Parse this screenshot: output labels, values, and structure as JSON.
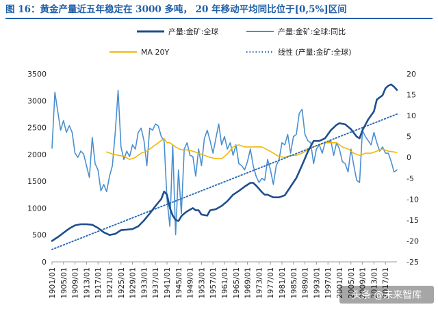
{
  "title": "图 16：黄金产量近五年稳定在 3000 多吨， 20 年移动平均同比位于[0,5%]区间",
  "watermark": "头条 @未来智库",
  "chart_data": {
    "type": "line",
    "legend": [
      {
        "name": "产量:金矿:全球",
        "color": "#1f4e8c",
        "style": "solid-thick",
        "axis": "left"
      },
      {
        "name": "产量:金矿:全球:同比",
        "color": "#4a8fd0",
        "style": "solid",
        "axis": "right"
      },
      {
        "name": "MA 20Y",
        "color": "#f2b705",
        "style": "solid",
        "axis": "right"
      },
      {
        "name": "线性 (产量:金矿:全球)",
        "color": "#2e6db4",
        "style": "dotted",
        "axis": "left"
      }
    ],
    "y_left": {
      "min": 0,
      "max": 3500,
      "step": 500,
      "ticks": [
        "0",
        "500",
        "1000",
        "1500",
        "2000",
        "2500",
        "3000",
        "3500"
      ]
    },
    "y_right": {
      "min": -25,
      "max": 20,
      "step": 5,
      "ticks": [
        "-25",
        "-20",
        "-15",
        "-10",
        "-5",
        "0",
        "5",
        "10",
        "15",
        "20"
      ]
    },
    "x_start_year": 1901,
    "x_end_year": 2021,
    "x_ticks": [
      "1901/01",
      "1905/01",
      "1909/01",
      "1913/01",
      "1917/01",
      "1921/01",
      "1925/01",
      "1929/01",
      "1933/01",
      "1937/01",
      "1941/01",
      "1945/01",
      "1949/01",
      "1953/01",
      "1957/01",
      "1961/01",
      "1965/01",
      "1969/01",
      "1973/01",
      "1977/01",
      "1981/01",
      "1985/01",
      "1989/01",
      "1993/01",
      "1997/01",
      "2001/01",
      "2005/01",
      "2009/01",
      "2013/01",
      "2017/01"
    ],
    "series": [
      {
        "name": "产量:金矿:全球",
        "axis": "left",
        "points": [
          [
            1901,
            390
          ],
          [
            1903,
            460
          ],
          [
            1905,
            540
          ],
          [
            1907,
            620
          ],
          [
            1909,
            680
          ],
          [
            1911,
            700
          ],
          [
            1913,
            700
          ],
          [
            1915,
            690
          ],
          [
            1917,
            630
          ],
          [
            1919,
            550
          ],
          [
            1921,
            500
          ],
          [
            1923,
            520
          ],
          [
            1925,
            590
          ],
          [
            1927,
            600
          ],
          [
            1929,
            610
          ],
          [
            1931,
            660
          ],
          [
            1933,
            770
          ],
          [
            1935,
            900
          ],
          [
            1937,
            1040
          ],
          [
            1939,
            1170
          ],
          [
            1940,
            1310
          ],
          [
            1941,
            1250
          ],
          [
            1942,
            1000
          ],
          [
            1943,
            860
          ],
          [
            1944,
            780
          ],
          [
            1945,
            760
          ],
          [
            1946,
            850
          ],
          [
            1947,
            900
          ],
          [
            1948,
            940
          ],
          [
            1950,
            1000
          ],
          [
            1951,
            960
          ],
          [
            1952,
            960
          ],
          [
            1953,
            880
          ],
          [
            1955,
            860
          ],
          [
            1956,
            960
          ],
          [
            1958,
            980
          ],
          [
            1960,
            1040
          ],
          [
            1962,
            1130
          ],
          [
            1964,
            1250
          ],
          [
            1966,
            1320
          ],
          [
            1968,
            1400
          ],
          [
            1970,
            1470
          ],
          [
            1971,
            1470
          ],
          [
            1972,
            1420
          ],
          [
            1974,
            1300
          ],
          [
            1975,
            1250
          ],
          [
            1976,
            1250
          ],
          [
            1978,
            1200
          ],
          [
            1980,
            1200
          ],
          [
            1982,
            1240
          ],
          [
            1984,
            1400
          ],
          [
            1986,
            1560
          ],
          [
            1988,
            1800
          ],
          [
            1990,
            2050
          ],
          [
            1992,
            2250
          ],
          [
            1994,
            2250
          ],
          [
            1996,
            2300
          ],
          [
            1998,
            2450
          ],
          [
            2000,
            2550
          ],
          [
            2001,
            2580
          ],
          [
            2003,
            2560
          ],
          [
            2005,
            2470
          ],
          [
            2007,
            2330
          ],
          [
            2008,
            2300
          ],
          [
            2009,
            2450
          ],
          [
            2011,
            2650
          ],
          [
            2013,
            2800
          ],
          [
            2014,
            3020
          ],
          [
            2016,
            3100
          ],
          [
            2017,
            3230
          ],
          [
            2018,
            3280
          ],
          [
            2019,
            3300
          ],
          [
            2020,
            3260
          ],
          [
            2021,
            3200
          ]
        ]
      },
      {
        "name": "产量:金矿:全球:同比",
        "axis": "right",
        "points": [
          [
            1901,
            2.2
          ],
          [
            1902,
            15.6
          ],
          [
            1903,
            11.0
          ],
          [
            1904,
            6.5
          ],
          [
            1905,
            8.8
          ],
          [
            1906,
            6.0
          ],
          [
            1907,
            7.6
          ],
          [
            1908,
            6.0
          ],
          [
            1909,
            1.0
          ],
          [
            1910,
            0.0
          ],
          [
            1911,
            1.5
          ],
          [
            1912,
            0.8
          ],
          [
            1913,
            -2.0
          ],
          [
            1914,
            -4.8
          ],
          [
            1915,
            4.8
          ],
          [
            1916,
            -1.5
          ],
          [
            1917,
            -3.0
          ],
          [
            1918,
            -8.0
          ],
          [
            1919,
            -6.5
          ],
          [
            1920,
            -8.2
          ],
          [
            1921,
            -4.5
          ],
          [
            1922,
            -2.0
          ],
          [
            1923,
            6.0
          ],
          [
            1924,
            16.0
          ],
          [
            1925,
            2.5
          ],
          [
            1926,
            -0.5
          ],
          [
            1927,
            1.5
          ],
          [
            1928,
            0.2
          ],
          [
            1929,
            3.0
          ],
          [
            1930,
            2.0
          ],
          [
            1931,
            6.0
          ],
          [
            1932,
            7.0
          ],
          [
            1933,
            4.0
          ],
          [
            1934,
            -2.0
          ],
          [
            1935,
            7.0
          ],
          [
            1936,
            6.5
          ],
          [
            1937,
            8.0
          ],
          [
            1938,
            7.5
          ],
          [
            1939,
            5.0
          ],
          [
            1940,
            4.0
          ],
          [
            1941,
            -10.0
          ],
          [
            1942,
            -16.5
          ],
          [
            1943,
            3.0
          ],
          [
            1944,
            -18.5
          ],
          [
            1945,
            -3.0
          ],
          [
            1946,
            -13.5
          ],
          [
            1947,
            2.0
          ],
          [
            1948,
            3.5
          ],
          [
            1949,
            0.5
          ],
          [
            1950,
            0.2
          ],
          [
            1951,
            -4.5
          ],
          [
            1952,
            2.0
          ],
          [
            1953,
            -2.0
          ],
          [
            1954,
            4.5
          ],
          [
            1955,
            6.5
          ],
          [
            1956,
            4.0
          ],
          [
            1957,
            1.0
          ],
          [
            1958,
            4.5
          ],
          [
            1959,
            8.0
          ],
          [
            1960,
            3.0
          ],
          [
            1961,
            5.0
          ],
          [
            1962,
            2.0
          ],
          [
            1963,
            3.5
          ],
          [
            1964,
            0.5
          ],
          [
            1965,
            3.0
          ],
          [
            1966,
            -1.5
          ],
          [
            1967,
            -2.0
          ],
          [
            1968,
            -3.0
          ],
          [
            1969,
            -1.0
          ],
          [
            1970,
            2.0
          ],
          [
            1971,
            -2.0
          ],
          [
            1972,
            -4.5
          ],
          [
            1973,
            -6.0
          ],
          [
            1974,
            -5.0
          ],
          [
            1975,
            -5.5
          ],
          [
            1976,
            -0.5
          ],
          [
            1977,
            -3.0
          ],
          [
            1978,
            -6.5
          ],
          [
            1979,
            -2.0
          ],
          [
            1980,
            -0.5
          ],
          [
            1981,
            3.5
          ],
          [
            1982,
            3.0
          ],
          [
            1983,
            5.5
          ],
          [
            1984,
            1.0
          ],
          [
            1985,
            5.0
          ],
          [
            1986,
            5.5
          ],
          [
            1987,
            10.5
          ],
          [
            1988,
            11.5
          ],
          [
            1989,
            5.5
          ],
          [
            1990,
            4.0
          ],
          [
            1991,
            3.5
          ],
          [
            1992,
            -1.5
          ],
          [
            1993,
            2.0
          ],
          [
            1994,
            3.0
          ],
          [
            1995,
            1.0
          ],
          [
            1996,
            3.5
          ],
          [
            1997,
            3.5
          ],
          [
            1998,
            4.0
          ],
          [
            1999,
            0.5
          ],
          [
            2000,
            3.5
          ],
          [
            2001,
            2.0
          ],
          [
            2002,
            -1.0
          ],
          [
            2003,
            -1.5
          ],
          [
            2004,
            -3.5
          ],
          [
            2005,
            2.0
          ],
          [
            2006,
            -2.0
          ],
          [
            2007,
            -5.5
          ],
          [
            2008,
            -6.0
          ],
          [
            2009,
            6.5
          ],
          [
            2010,
            5.0
          ],
          [
            2011,
            4.0
          ],
          [
            2012,
            3.0
          ],
          [
            2013,
            6.0
          ],
          [
            2014,
            3.5
          ],
          [
            2015,
            1.5
          ],
          [
            2016,
            2.5
          ],
          [
            2017,
            1.0
          ],
          [
            2018,
            1.0
          ],
          [
            2019,
            -1.0
          ],
          [
            2020,
            -3.5
          ],
          [
            2021,
            -3.0
          ]
        ]
      },
      {
        "name": "MA 20Y",
        "axis": "right",
        "points": [
          [
            1920,
            1.3
          ],
          [
            1922,
            0.8
          ],
          [
            1924,
            0.5
          ],
          [
            1926,
            0.3
          ],
          [
            1928,
            -0.5
          ],
          [
            1930,
            0.0
          ],
          [
            1932,
            1.0
          ],
          [
            1934,
            1.5
          ],
          [
            1936,
            2.5
          ],
          [
            1938,
            3.5
          ],
          [
            1940,
            4.5
          ],
          [
            1941,
            3.5
          ],
          [
            1942,
            3.5
          ],
          [
            1944,
            2.5
          ],
          [
            1946,
            1.8
          ],
          [
            1948,
            1.8
          ],
          [
            1950,
            1.5
          ],
          [
            1952,
            1.0
          ],
          [
            1954,
            0.5
          ],
          [
            1956,
            0.0
          ],
          [
            1958,
            -0.3
          ],
          [
            1960,
            -0.3
          ],
          [
            1962,
            0.8
          ],
          [
            1964,
            2.5
          ],
          [
            1966,
            3.0
          ],
          [
            1968,
            2.5
          ],
          [
            1970,
            2.5
          ],
          [
            1972,
            2.5
          ],
          [
            1974,
            2.5
          ],
          [
            1976,
            1.8
          ],
          [
            1978,
            1.0
          ],
          [
            1980,
            0.2
          ],
          [
            1982,
            0.0
          ],
          [
            1984,
            0.5
          ],
          [
            1986,
            0.5
          ],
          [
            1988,
            1.0
          ],
          [
            1990,
            1.8
          ],
          [
            1992,
            2.5
          ],
          [
            1994,
            3.0
          ],
          [
            1996,
            3.5
          ],
          [
            1998,
            3.5
          ],
          [
            2000,
            3.5
          ],
          [
            2002,
            2.5
          ],
          [
            2004,
            2.0
          ],
          [
            2006,
            1.0
          ],
          [
            2008,
            0.5
          ],
          [
            2010,
            1.0
          ],
          [
            2012,
            1.0
          ],
          [
            2014,
            1.5
          ],
          [
            2016,
            2.0
          ],
          [
            2018,
            1.5
          ],
          [
            2020,
            1.3
          ],
          [
            2021,
            1.2
          ]
        ]
      },
      {
        "name": "线性 (产量:金矿:全球)",
        "axis": "left",
        "points": [
          [
            1901,
            230
          ],
          [
            2021,
            2750
          ]
        ]
      }
    ]
  }
}
